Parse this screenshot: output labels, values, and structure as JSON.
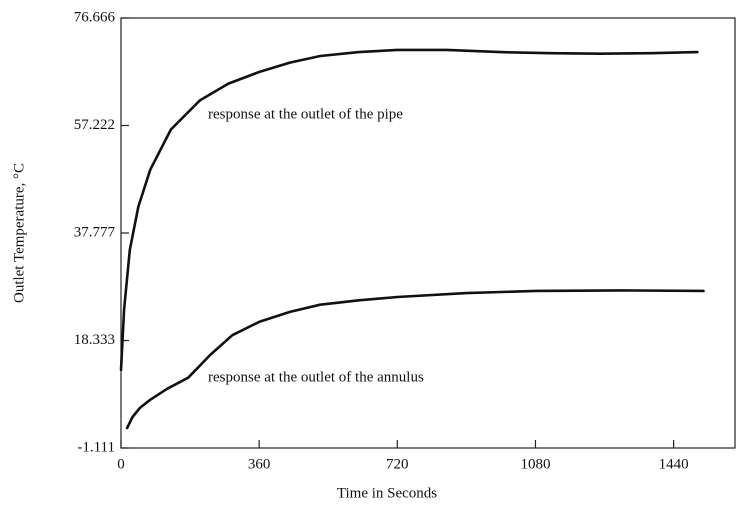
{
  "chart_data": {
    "type": "line",
    "xlabel": "Time in Seconds",
    "ylabel": "Outlet Temperature, °C",
    "xlim": [
      0,
      1600
    ],
    "xticks": [
      0,
      360,
      720,
      1080,
      1440
    ],
    "ylim": [
      -1.111,
      76.666
    ],
    "yticks": [
      -1.111,
      18.333,
      37.777,
      57.222,
      76.666
    ],
    "series": [
      {
        "name": "response at the outlet of the pipe",
        "color": "#111111",
        "x": [
          0,
          8,
          23,
          45,
          76,
          130,
          206,
          280,
          360,
          440,
          519,
          620,
          720,
          850,
          989,
          1120,
          1249,
          1380,
          1502
        ],
        "values": [
          13.0,
          24.0,
          34.7,
          42.5,
          49.2,
          56.5,
          61.8,
          64.8,
          66.9,
          68.6,
          69.8,
          70.5,
          70.9,
          70.9,
          70.5,
          70.3,
          70.2,
          70.3,
          70.5
        ]
      },
      {
        "name": "response at the outlet of the annulus",
        "color": "#111111",
        "x": [
          16,
          30,
          50,
          76,
          120,
          175,
          200,
          232,
          290,
          360,
          440,
          519,
          620,
          720,
          900,
          1080,
          1300,
          1518
        ],
        "values": [
          2.5,
          4.5,
          6.2,
          7.6,
          9.6,
          11.6,
          13.4,
          15.7,
          19.3,
          21.7,
          23.5,
          24.8,
          25.6,
          26.2,
          26.9,
          27.3,
          27.4,
          27.3
        ]
      }
    ]
  }
}
